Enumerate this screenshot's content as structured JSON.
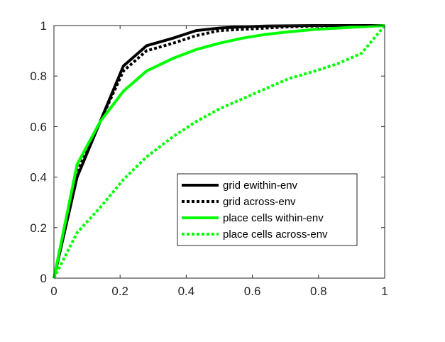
{
  "chart_data": {
    "type": "line",
    "title": "",
    "xlabel": "",
    "ylabel": "",
    "xlim": [
      0,
      1
    ],
    "ylim": [
      0,
      1
    ],
    "xticks": [
      "0",
      "0.2",
      "0.4",
      "0.6",
      "0.8",
      "1"
    ],
    "yticks": [
      "0",
      "0.2",
      "0.4",
      "0.6",
      "0.8",
      "1"
    ],
    "grid": false,
    "legend_placement": "lower-right",
    "series": [
      {
        "name": "grid ewithin-env",
        "color": "#000000",
        "style": "solid",
        "x": [
          0,
          0.07,
          0.14,
          0.21,
          0.28,
          0.36,
          0.43,
          0.5,
          0.57,
          0.64,
          0.71,
          0.79,
          0.86,
          0.93,
          1
        ],
        "y": [
          0,
          0.4,
          0.62,
          0.84,
          0.92,
          0.95,
          0.98,
          0.99,
          0.995,
          0.998,
          0.999,
          1,
          1,
          1,
          1
        ]
      },
      {
        "name": "grid across-env",
        "color": "#000000",
        "style": "dotted",
        "x": [
          0,
          0.07,
          0.14,
          0.21,
          0.28,
          0.36,
          0.43,
          0.5,
          0.57,
          0.64,
          0.71,
          0.79,
          0.86,
          0.93,
          1
        ],
        "y": [
          0,
          0.42,
          0.62,
          0.82,
          0.9,
          0.93,
          0.96,
          0.98,
          0.985,
          0.99,
          0.995,
          0.998,
          1,
          1,
          1
        ]
      },
      {
        "name": "place cells within-env",
        "color": "#00ff00",
        "style": "solid",
        "x": [
          0,
          0.07,
          0.14,
          0.21,
          0.28,
          0.36,
          0.43,
          0.5,
          0.57,
          0.64,
          0.71,
          0.79,
          0.86,
          0.93,
          1
        ],
        "y": [
          0,
          0.45,
          0.62,
          0.74,
          0.82,
          0.87,
          0.905,
          0.93,
          0.95,
          0.965,
          0.975,
          0.985,
          0.99,
          0.995,
          1
        ]
      },
      {
        "name": "place cells across-env",
        "color": "#00ff00",
        "style": "dotted",
        "x": [
          0,
          0.07,
          0.14,
          0.21,
          0.28,
          0.36,
          0.43,
          0.5,
          0.57,
          0.64,
          0.71,
          0.79,
          0.86,
          0.93,
          1
        ],
        "y": [
          0,
          0.18,
          0.28,
          0.39,
          0.48,
          0.56,
          0.62,
          0.67,
          0.71,
          0.75,
          0.79,
          0.82,
          0.85,
          0.89,
          1
        ]
      }
    ]
  }
}
